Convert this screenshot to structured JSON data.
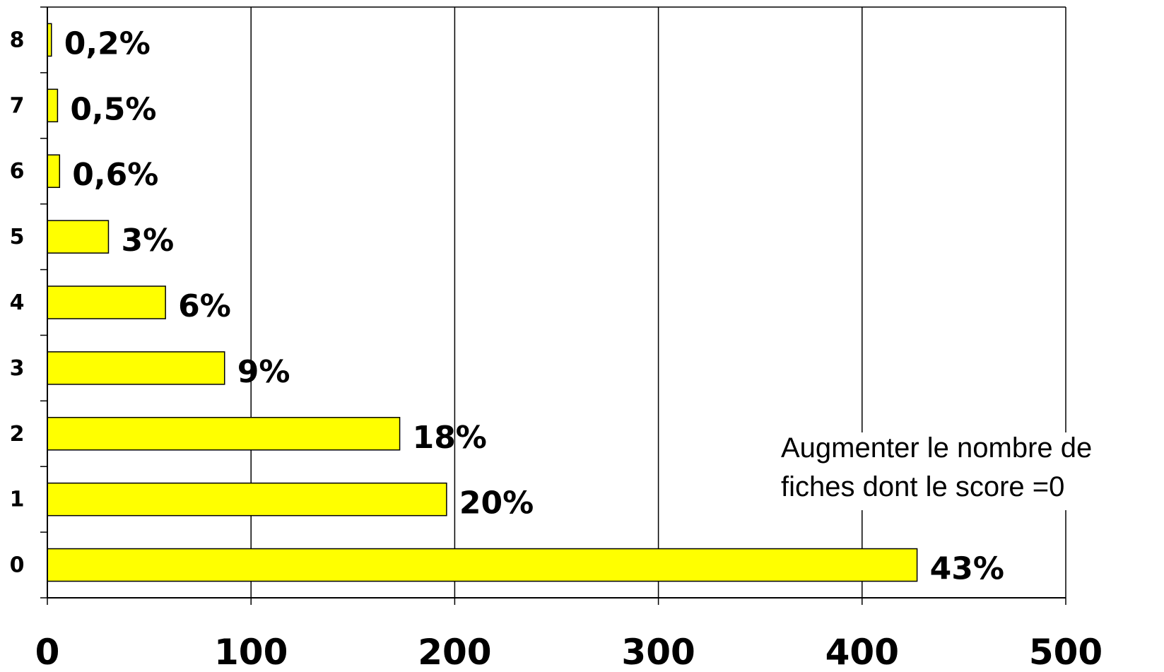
{
  "chart_data": {
    "type": "bar",
    "orientation": "horizontal",
    "categories": [
      "0",
      "1",
      "2",
      "3",
      "4",
      "5",
      "6",
      "7",
      "8"
    ],
    "values": [
      427,
      196,
      173,
      87,
      58,
      30,
      6,
      5,
      2
    ],
    "data_labels": [
      "43%",
      "20%",
      "18%",
      "9%",
      "6%",
      "3%",
      "0,6%",
      "0,5%",
      "0,2%"
    ],
    "x_ticks": [
      "0",
      "100",
      "200",
      "300",
      "400",
      "500"
    ],
    "xlim": [
      0,
      500
    ],
    "title": "",
    "xlabel": "",
    "ylabel": "",
    "grid": "vertical",
    "legend": "none",
    "bar_color": "#ffff00",
    "annotation": {
      "lines": [
        "Augmenter le nombre de",
        "fiches dont le score =0"
      ]
    }
  }
}
